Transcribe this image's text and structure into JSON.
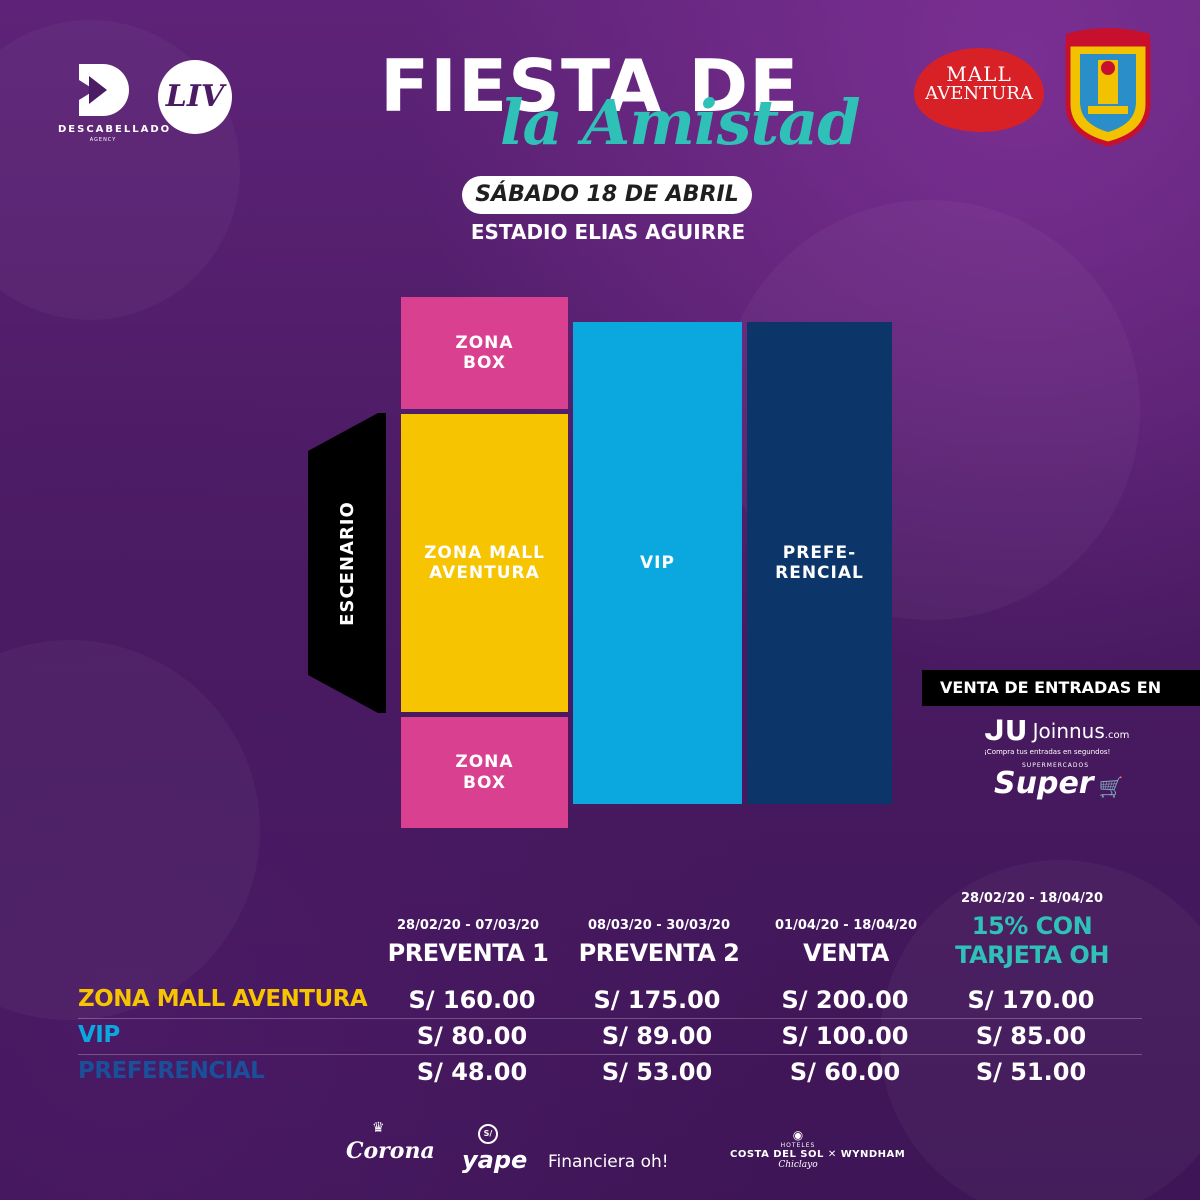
{
  "header": {
    "title_line1": "FIESTA DE",
    "title_line2": "la Amistad",
    "date": "SÁBADO 18 DE ABRIL",
    "venue": "ESTADIO ELIAS AGUIRRE"
  },
  "logos": {
    "descabellado": "DESCABELLADO",
    "descabellado_sub": "AGENCY",
    "liv": "LIV",
    "mall_line1": "MALL",
    "mall_line2": "AVENTURA"
  },
  "map": {
    "stage": "ESCENARIO",
    "zone_box_top_line1": "ZONA",
    "zone_box_top_line2": "BOX",
    "zone_mall_line1": "ZONA MALL",
    "zone_mall_line2": "AVENTURA",
    "zone_box_bottom_line1": "ZONA",
    "zone_box_bottom_line2": "BOX",
    "vip": "VIP",
    "pref_line1": "PREFE-",
    "pref_line2": "RENCIAL",
    "colors": {
      "box": "#d9408f",
      "mall": "#f6c400",
      "vip": "#0ba8e0",
      "preferencial": "#0c3669",
      "stage": "#000000"
    }
  },
  "sales": {
    "banner": "VENTA DE ENTRADAS EN",
    "joinnus_name": "Joinnus",
    "joinnus_suffix": ".com",
    "joinnus_tagline": "¡Compra tus entradas en segundos!",
    "super_sub": "SUPERMERCADOS",
    "super_name": "Super"
  },
  "prices": {
    "columns": [
      {
        "dates": "28/02/20 - 07/03/20",
        "name": "PREVENTA 1"
      },
      {
        "dates": "08/03/20 - 30/03/20",
        "name": "PREVENTA 2"
      },
      {
        "dates": "01/04/20 - 18/04/20",
        "name": "VENTA"
      },
      {
        "dates": "28/02/20 - 18/04/20",
        "name_line1": "15% CON",
        "name_line2": "TARJETA OH"
      }
    ],
    "rows": [
      {
        "label": "ZONA MALL AVENTURA",
        "color": "#f6c400",
        "values": [
          "S/ 160.00",
          "S/ 175.00",
          "S/ 200.00",
          "S/ 170.00"
        ]
      },
      {
        "label": "VIP",
        "color": "#0ba8e0",
        "values": [
          "S/ 80.00",
          "S/ 89.00",
          "S/ 100.00",
          "S/ 85.00"
        ]
      },
      {
        "label": "PREFERENCIAL",
        "color": "#1a4f9a",
        "values": [
          "S/ 48.00",
          "S/ 53.00",
          "S/ 60.00",
          "S/ 51.00"
        ]
      }
    ]
  },
  "sponsors": {
    "corona": "Corona",
    "yape_mark": "S/",
    "yape": "yape",
    "financiera": "Financiera oh!",
    "costa_hoteles": "HOTELES",
    "costa_name": "COSTA DEL SOL ✕ WYNDHAM",
    "costa_city": "Chiclayo"
  },
  "accent_teal": "#2fc1b8"
}
